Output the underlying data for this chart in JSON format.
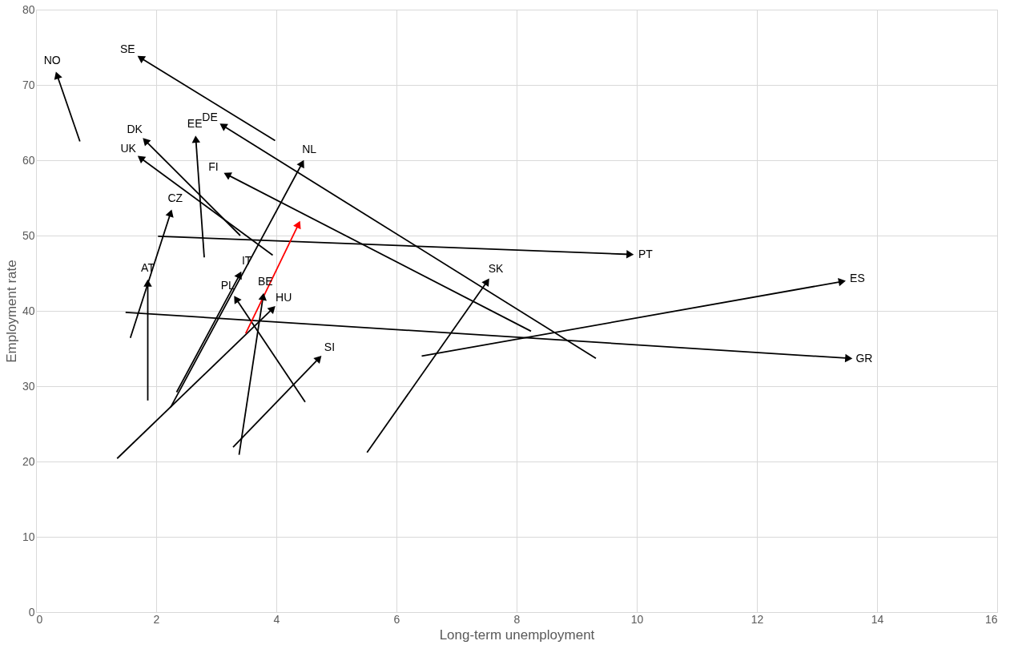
{
  "chart_data": {
    "type": "line",
    "xlabel": "Long-term unemployment",
    "ylabel": "Employment rate",
    "xlim": [
      0,
      16
    ],
    "xticks": [
      0,
      2,
      4,
      6,
      8,
      10,
      12,
      14,
      16
    ],
    "ylim": [
      0,
      80
    ],
    "yticks": [
      0,
      10,
      20,
      30,
      40,
      50,
      60,
      70,
      80
    ],
    "grid": true,
    "legend": false,
    "marker": "triangle",
    "line_style": "solid",
    "series": [
      {
        "name": "NO",
        "color": "#000000",
        "x": [
          0.73,
          0.35
        ],
        "values": [
          62.5,
          71.3
        ]
      },
      {
        "name": "SE",
        "color": "#000000",
        "x": [
          3.98,
          1.74
        ],
        "values": [
          62.6,
          73.6
        ]
      },
      {
        "name": "DK",
        "color": "#000000",
        "x": [
          3.4,
          1.82
        ],
        "values": [
          50.0,
          62.6
        ]
      },
      {
        "name": "EE",
        "color": "#000000",
        "x": [
          2.8,
          2.66
        ],
        "values": [
          47.1,
          62.8
        ]
      },
      {
        "name": "DE",
        "color": "#000000",
        "x": [
          9.32,
          3.11
        ],
        "values": [
          33.7,
          64.6
        ]
      },
      {
        "name": "UK",
        "color": "#000000",
        "x": [
          3.94,
          1.74
        ],
        "values": [
          47.4,
          60.3
        ]
      },
      {
        "name": "FI",
        "color": "#000000",
        "x": [
          8.24,
          3.18
        ],
        "values": [
          37.3,
          58.1
        ]
      },
      {
        "name": "NL",
        "color": "#000000",
        "x": [
          2.24,
          4.43
        ],
        "values": [
          27.2,
          59.6
        ]
      },
      {
        "name": "CZ",
        "color": "#000000",
        "x": [
          1.57,
          2.24
        ],
        "values": [
          36.4,
          53.0
        ]
      },
      {
        "name": "PT",
        "color": "#000000",
        "x": [
          2.03,
          9.89
        ],
        "values": [
          49.9,
          47.5
        ]
      },
      {
        "name": "IT",
        "color": "#000000",
        "x": [
          2.34,
          3.39
        ],
        "values": [
          29.2,
          44.8
        ]
      },
      {
        "name": "AT",
        "color": "#000000",
        "x": [
          1.86,
          1.86
        ],
        "values": [
          28.1,
          43.7
        ]
      },
      {
        "name": "ES",
        "color": "#000000",
        "x": [
          6.42,
          13.42
        ],
        "values": [
          34.0,
          43.9
        ]
      },
      {
        "name": "SK",
        "color": "#000000",
        "x": [
          5.51,
          7.51
        ],
        "values": [
          21.2,
          43.9
        ]
      },
      {
        "name": "PL",
        "color": "#000000",
        "x": [
          4.48,
          3.33
        ],
        "values": [
          27.9,
          41.6
        ]
      },
      {
        "name": "BE",
        "color": "#000000",
        "x": [
          3.38,
          3.78
        ],
        "values": [
          20.9,
          41.9
        ]
      },
      {
        "name": "HU",
        "color": "#000000",
        "x": [
          1.35,
          3.94
        ],
        "values": [
          20.4,
          40.3
        ]
      },
      {
        "name": "SI",
        "color": "#000000",
        "x": [
          3.28,
          4.71
        ],
        "values": [
          21.9,
          33.7
        ]
      },
      {
        "name": "GR",
        "color": "#000000",
        "x": [
          1.49,
          13.53
        ],
        "values": [
          39.8,
          33.7
        ]
      },
      {
        "color": "#ff0000",
        "x": [
          3.49,
          4.37
        ],
        "values": [
          37.0,
          51.5
        ]
      }
    ]
  }
}
